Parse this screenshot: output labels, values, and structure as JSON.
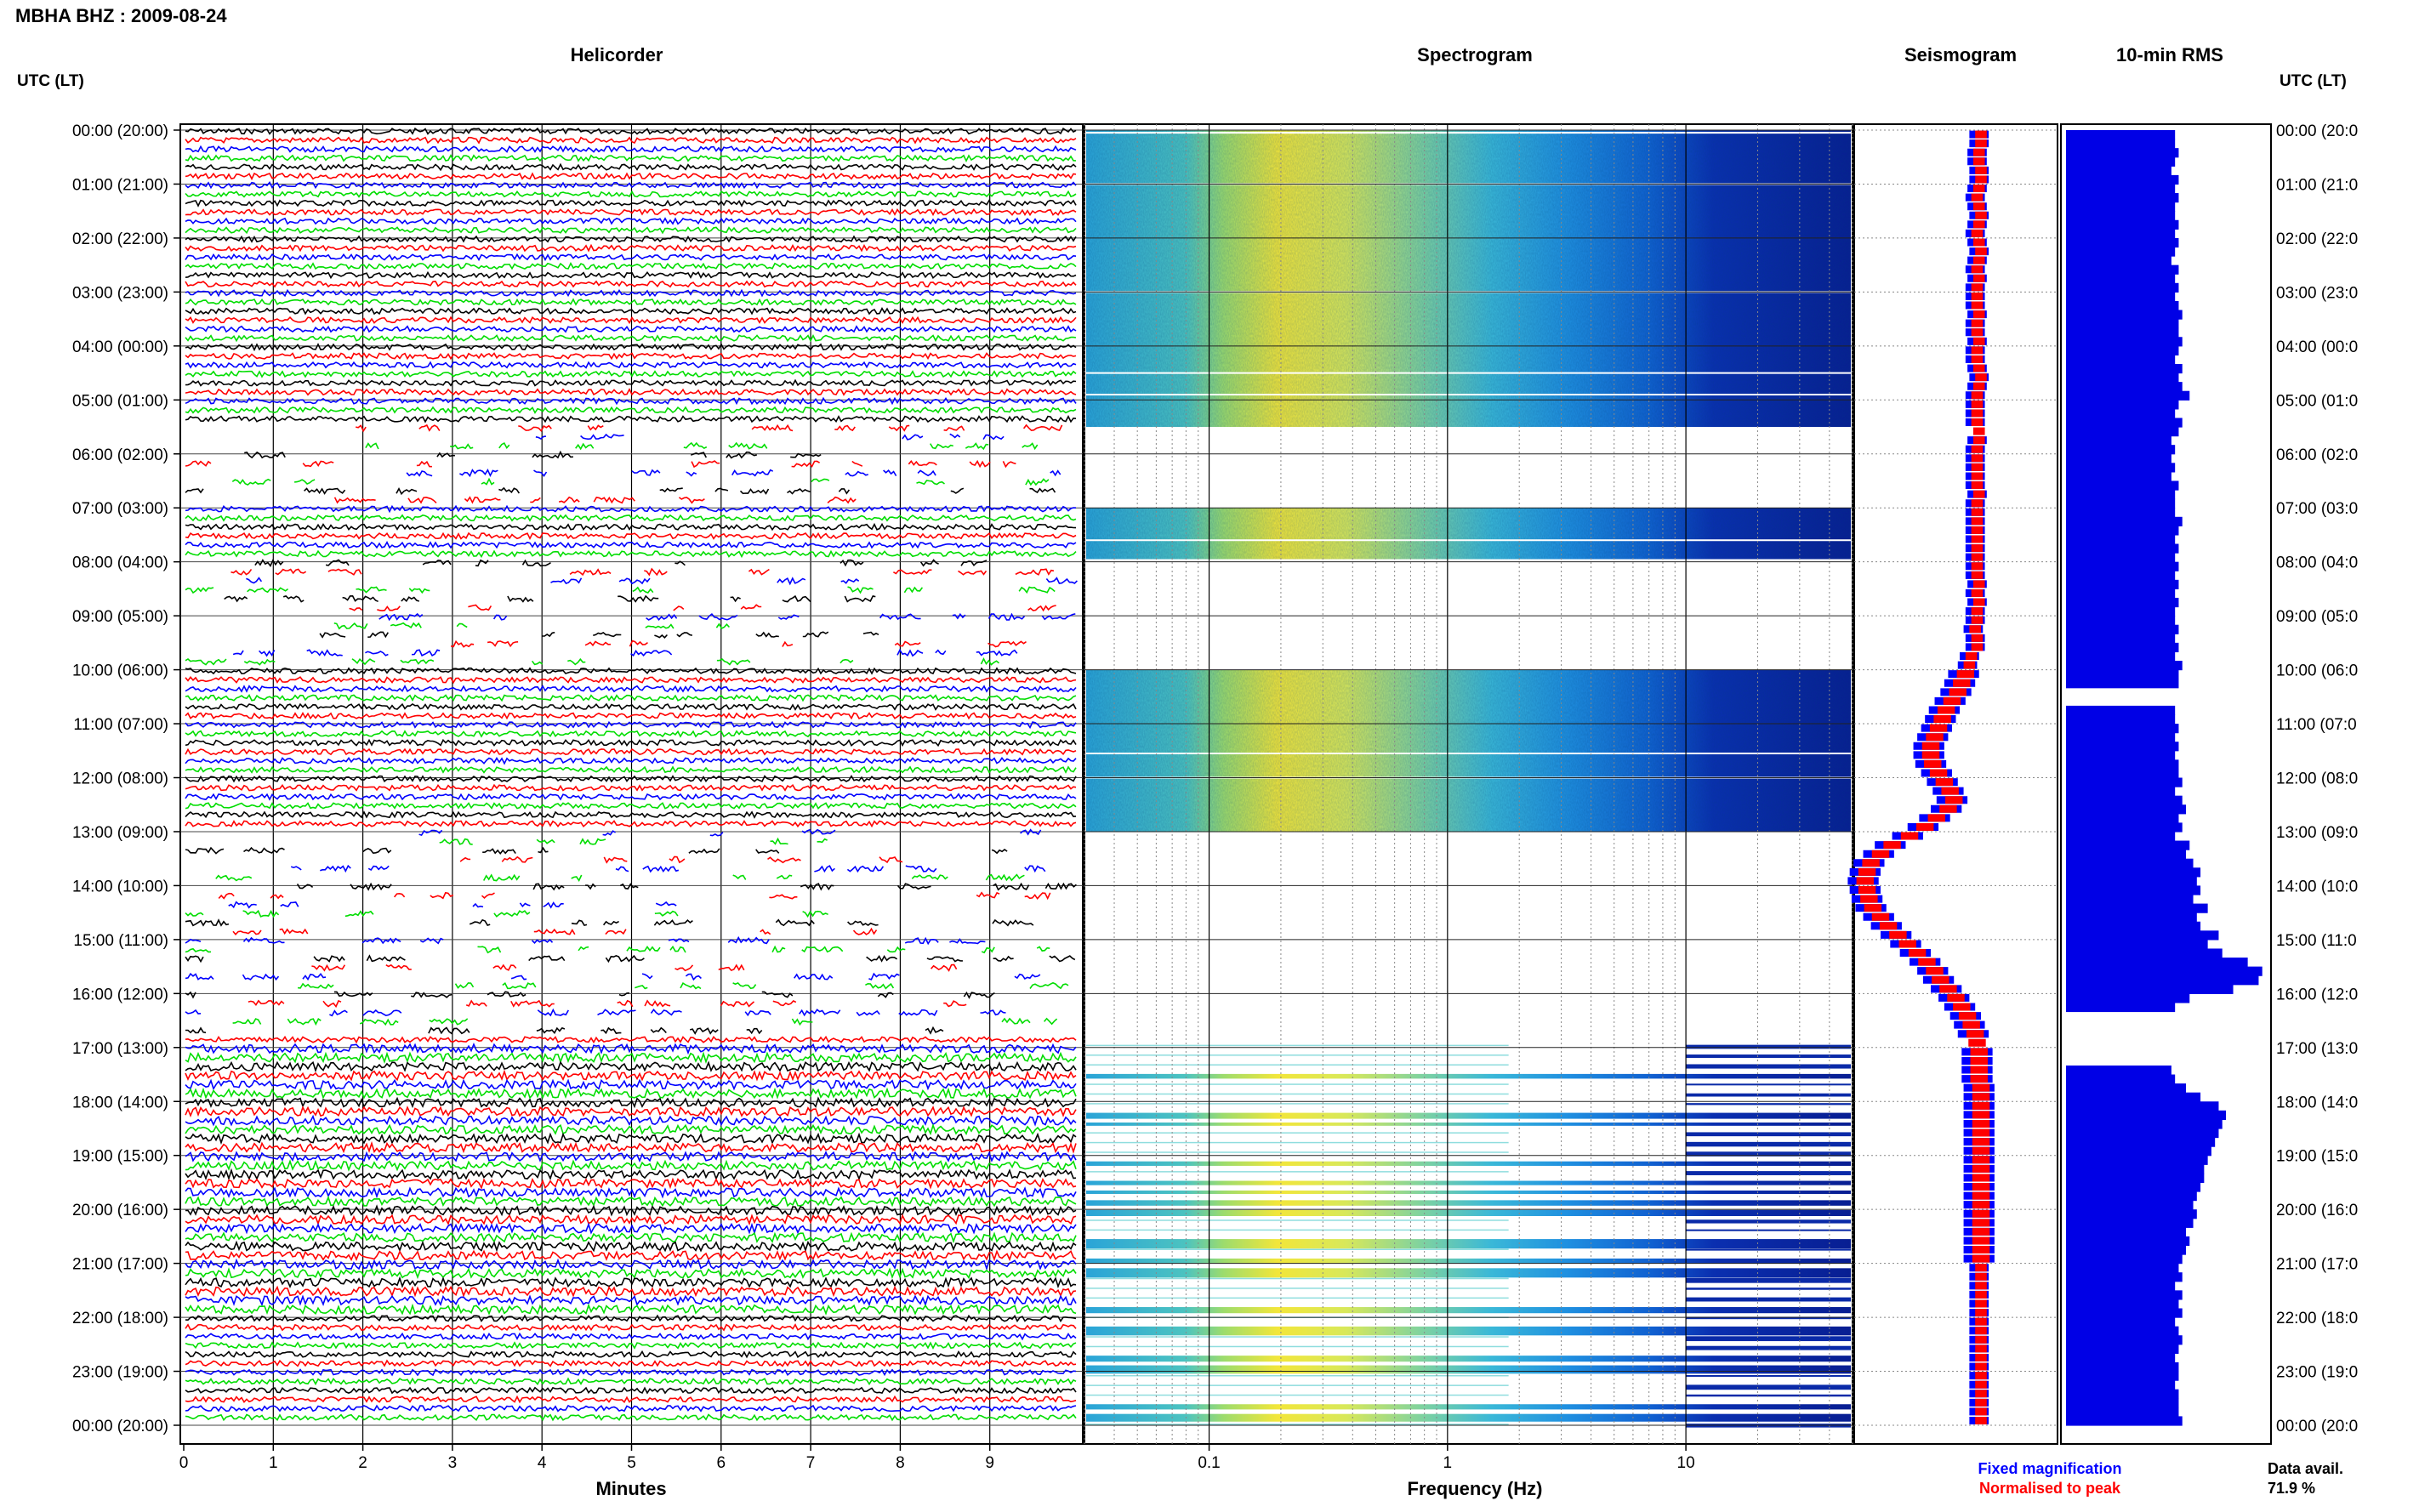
{
  "header": {
    "station_title": "MBHA BHZ : 2009-08-24",
    "utc_label_left": "UTC (LT)",
    "utc_label_right": "UTC (LT)"
  },
  "panels": {
    "helicorder_title": "Helicorder",
    "spectrogram_title": "Spectrogram",
    "seismogram_title": "Seismogram",
    "rms_title": "10-min RMS"
  },
  "axes": {
    "minutes_label": "Minutes",
    "frequency_label": "Frequency (Hz)"
  },
  "legend": {
    "fixed_magnification": "Fixed magnification",
    "normalised_to_peak": "Normalised to peak",
    "fixed_color": "#0000ff",
    "normalised_color": "#ff0000"
  },
  "data_availability": {
    "label": "Data avail.",
    "value": "71.9 %"
  },
  "chart_data": {
    "type": "heatmap",
    "time_ticks_left": [
      "00:00 (20:00)",
      "01:00 (21:00)",
      "02:00 (22:00)",
      "03:00 (23:00)",
      "04:00 (00:00)",
      "05:00 (01:00)",
      "06:00 (02:00)",
      "07:00 (03:00)",
      "08:00 (04:00)",
      "09:00 (05:00)",
      "10:00 (06:00)",
      "11:00 (07:00)",
      "12:00 (08:00)",
      "13:00 (09:00)",
      "14:00 (10:00)",
      "15:00 (11:00)",
      "16:00 (12:00)",
      "17:00 (13:00)",
      "18:00 (14:00)",
      "19:00 (15:00)",
      "20:00 (16:00)",
      "21:00 (17:00)",
      "22:00 (18:00)",
      "23:00 (19:00)",
      "00:00 (20:00)"
    ],
    "time_ticks_right": [
      "00:00 (20:0",
      "01:00 (21:0",
      "02:00 (22:0",
      "03:00 (23:0",
      "04:00 (00:0",
      "05:00 (01:0",
      "06:00 (02:0",
      "07:00 (03:0",
      "08:00 (04:0",
      "09:00 (05:0",
      "10:00 (06:0",
      "11:00 (07:0",
      "12:00 (08:0",
      "13:00 (09:0",
      "14:00 (10:0",
      "15:00 (11:0",
      "16:00 (12:0",
      "17:00 (13:0",
      "18:00 (14:0",
      "19:00 (15:0",
      "20:00 (16:0",
      "21:00 (17:0",
      "22:00 (18:0",
      "23:00 (19:0",
      "00:00 (20:0"
    ],
    "minute_ticks": [
      "0",
      "1",
      "2",
      "3",
      "4",
      "5",
      "6",
      "7",
      "8",
      "9"
    ],
    "frequency_ticks": [
      {
        "value": 0.1,
        "label": "0.1"
      },
      {
        "value": 1,
        "label": "1"
      },
      {
        "value": 10,
        "label": "10"
      }
    ],
    "frequency_range": [
      0.03,
      50
    ],
    "helicorder_colors": [
      "#000000",
      "#ff0000",
      "#0000ff",
      "#00dd00"
    ],
    "data_gaps_hours": [
      [
        5.5,
        7.0
      ],
      [
        7.95,
        10.0
      ],
      [
        13.0,
        16.85
      ]
    ],
    "sparse_trace_hours": [
      [
        5.5,
        7.0
      ],
      [
        7.95,
        10.0
      ],
      [
        13.0,
        16.85
      ]
    ],
    "rms_10min": [
      30,
      30,
      31,
      30,
      29,
      31,
      30,
      31,
      30,
      30,
      31,
      30,
      31,
      30,
      29,
      31,
      30,
      31,
      30,
      31,
      32,
      31,
      31,
      32,
      31,
      30,
      32,
      31,
      32,
      34,
      31,
      30,
      32,
      31,
      29,
      30,
      29,
      30,
      29,
      31,
      30,
      30,
      30,
      32,
      31,
      30,
      31,
      30,
      31,
      30,
      31,
      30,
      31,
      30,
      30,
      31,
      30,
      31,
      30,
      32,
      31,
      31,
      0,
      0,
      30,
      30,
      31,
      30,
      31,
      30,
      31,
      31,
      32,
      30,
      32,
      33,
      31,
      32,
      30,
      34,
      33,
      35,
      37,
      36,
      37,
      35,
      39,
      36,
      37,
      42,
      39,
      43,
      50,
      54,
      53,
      46,
      34,
      30,
      0,
      0,
      0,
      0,
      0,
      0,
      29,
      30,
      33,
      37,
      42,
      44,
      43,
      42,
      41,
      40,
      39,
      38,
      38,
      37,
      36,
      35,
      36,
      35,
      33,
      34,
      33,
      32,
      31,
      32,
      30,
      32,
      31,
      32,
      30,
      31,
      32,
      31,
      30,
      31,
      31,
      30,
      31,
      31,
      31,
      32
    ],
    "rms_max": 55,
    "seismogram_fixed": [
      0.62,
      0.62,
      0.61,
      0.61,
      0.62,
      0.62,
      0.61,
      0.6,
      0.61,
      0.62,
      0.61,
      0.6,
      0.61,
      0.62,
      0.61,
      0.6,
      0.61,
      0.6,
      0.6,
      0.6,
      0.61,
      0.6,
      0.6,
      0.61,
      0.6,
      0.6,
      0.61,
      0.62,
      0.61,
      0.6,
      0.6,
      0.6,
      0.6,
      0.61,
      0.61,
      0.6,
      0.6,
      0.6,
      0.6,
      0.6,
      0.61,
      0.6,
      0.6,
      0.6,
      0.6,
      0.6,
      0.6,
      0.6,
      0.6,
      0.6,
      0.61,
      0.6,
      0.61,
      0.6,
      0.6,
      0.59,
      0.6,
      0.6,
      0.57,
      0.56,
      0.54,
      0.52,
      0.5,
      0.47,
      0.44,
      0.42,
      0.4,
      0.38,
      0.36,
      0.36,
      0.37,
      0.4,
      0.43,
      0.46,
      0.48,
      0.45,
      0.39,
      0.33,
      0.25,
      0.16,
      0.1,
      0.05,
      0.03,
      0.02,
      0.03,
      0.04,
      0.06,
      0.1,
      0.14,
      0.19,
      0.24,
      0.29,
      0.34,
      0.38,
      0.41,
      0.45,
      0.49,
      0.52,
      0.55,
      0.57,
      0.59,
      0.6,
      0.61,
      0.61,
      0.61,
      0.61,
      0.62,
      0.62,
      0.62,
      0.62,
      0.62,
      0.62,
      0.62,
      0.62,
      0.62,
      0.62,
      0.62,
      0.62,
      0.62,
      0.62,
      0.62,
      0.62,
      0.62,
      0.62,
      0.62,
      0.62,
      0.62,
      0.62,
      0.62,
      0.62,
      0.62,
      0.62,
      0.62,
      0.62,
      0.62,
      0.62,
      0.62,
      0.62,
      0.62,
      0.62,
      0.62,
      0.62,
      0.62,
      0.62
    ]
  }
}
